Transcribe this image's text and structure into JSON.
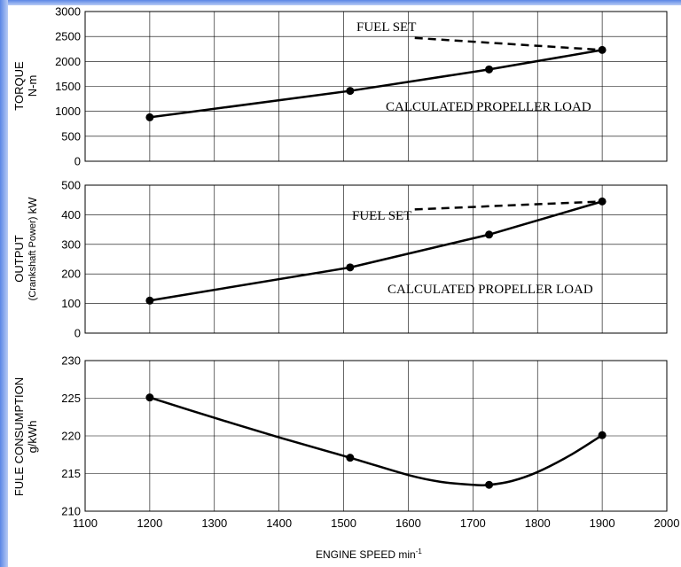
{
  "chart_data": [
    {
      "type": "line",
      "id": "torque",
      "title": "",
      "ylabel": "TORQUE",
      "yunit": "N-m",
      "ylim": [
        0,
        3000
      ],
      "yticks": [
        0,
        500,
        1000,
        1500,
        2000,
        2500,
        3000
      ],
      "xlim": [
        1100,
        2000
      ],
      "grid": true,
      "series": [
        {
          "name": "CALCULATED PROPELLER LOAD",
          "style": "solid",
          "markers": true,
          "x": [
            1200,
            1510,
            1725,
            1900
          ],
          "y": [
            880,
            1410,
            1840,
            2230
          ]
        },
        {
          "name": "FUEL SET",
          "style": "dashed",
          "markers": false,
          "x": [
            1610,
            1900
          ],
          "y": [
            2470,
            2230
          ]
        }
      ]
    },
    {
      "type": "line",
      "id": "output",
      "title": "",
      "ylabel": "OUTPUT",
      "ysublabel": "(Crankshaft  Power)",
      "yunit": "kW",
      "ylim": [
        0,
        500
      ],
      "yticks": [
        0,
        100,
        200,
        300,
        400,
        500
      ],
      "xlim": [
        1100,
        2000
      ],
      "grid": true,
      "series": [
        {
          "name": "CALCULATED PROPELLER LOAD",
          "style": "solid",
          "markers": true,
          "x": [
            1200,
            1510,
            1725,
            1900
          ],
          "y": [
            110,
            222,
            333,
            445
          ]
        },
        {
          "name": "FUEL SET",
          "style": "dashed",
          "markers": false,
          "x": [
            1610,
            1900
          ],
          "y": [
            418,
            445
          ]
        }
      ]
    },
    {
      "type": "line",
      "id": "fuel",
      "title": "",
      "ylabel": "FULE CONSUMPTION",
      "yunit": "g/kWh",
      "ylim": [
        210,
        230
      ],
      "yticks": [
        210,
        215,
        220,
        225,
        230
      ],
      "xlim": [
        1100,
        2000
      ],
      "xticks": [
        1100,
        1200,
        1300,
        1400,
        1500,
        1600,
        1700,
        1800,
        1900,
        2000
      ],
      "xlabel": "ENGINE SPEED min",
      "xlabel_sup": "-1",
      "grid": true,
      "series": [
        {
          "name": "",
          "style": "solid",
          "markers": true,
          "x": [
            1200,
            1510,
            1725,
            1900
          ],
          "y": [
            225.1,
            217.1,
            213.5,
            220.1
          ],
          "curve": [
            [
              1200,
              225.1
            ],
            [
              1300,
              222.4
            ],
            [
              1400,
              219.8
            ],
            [
              1510,
              217.1
            ],
            [
              1600,
              214.8
            ],
            [
              1650,
              213.9
            ],
            [
              1700,
              213.5
            ],
            [
              1725,
              213.5
            ],
            [
              1760,
              214.0
            ],
            [
              1800,
              215.2
            ],
            [
              1850,
              217.4
            ],
            [
              1900,
              220.1
            ]
          ]
        }
      ]
    }
  ],
  "labels": {
    "torque_fuel_set": "FUEL SET",
    "torque_calc": "CALCULATED PROPELLER LOAD",
    "output_fuel_set": "FUEL SET",
    "output_calc": "CALCULATED PROPELLER LOAD",
    "torque_ylabel": "TORQUE",
    "torque_unit": "N-m",
    "output_ylabel": "OUTPUT",
    "output_sublabel": "(Crankshaft  Power)",
    "output_unit": "kW",
    "fuel_ylabel": "FULE CONSUMPTION",
    "fuel_unit": "g/kWh",
    "xlabel": "ENGINE SPEED min",
    "xlabel_sup": "-1"
  },
  "colors": {
    "frame_accent": "#5b86e5",
    "line": "#000000",
    "background": "#ffffff"
  }
}
